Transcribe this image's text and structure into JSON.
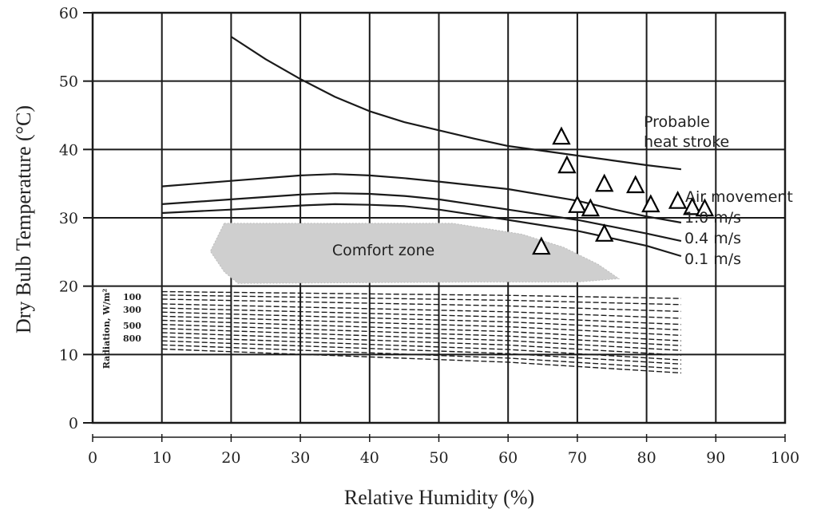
{
  "chart_data": {
    "type": "scatter",
    "xlabel": "Relative Humidity (%)",
    "ylabel": "Dry Bulb Temperature (°C)",
    "xlim": [
      0,
      100
    ],
    "ylim": [
      0,
      60
    ],
    "x_ticks": [
      "0",
      "10",
      "20",
      "30",
      "40",
      "50",
      "60",
      "70",
      "80",
      "90",
      "100"
    ],
    "y_ticks": [
      "0",
      "10",
      "20",
      "30",
      "40",
      "50",
      "60"
    ],
    "grid": true,
    "marker": "triangle-outline",
    "series": [
      {
        "points": [
          {
            "x": 67.7,
            "y": 41.8
          },
          {
            "x": 68.5,
            "y": 37.6
          },
          {
            "x": 70.0,
            "y": 31.8
          },
          {
            "x": 71.9,
            "y": 31.3
          },
          {
            "x": 73.9,
            "y": 34.9
          },
          {
            "x": 78.4,
            "y": 34.7
          },
          {
            "x": 80.6,
            "y": 31.9
          },
          {
            "x": 84.5,
            "y": 32.4
          },
          {
            "x": 86.6,
            "y": 31.5
          },
          {
            "x": 88.4,
            "y": 31.3
          },
          {
            "x": 64.8,
            "y": 25.7
          },
          {
            "x": 73.9,
            "y": 27.6
          }
        ]
      }
    ],
    "curves": [
      {
        "x": [
          20,
          25,
          30,
          35,
          40,
          45,
          50,
          55,
          60,
          65,
          70,
          75,
          80,
          85
        ],
        "y": [
          56.5,
          53.2,
          50.3,
          47.7,
          45.6,
          44.0,
          42.8,
          41.6,
          40.5,
          39.8,
          39.1,
          38.4,
          37.7,
          37.1
        ]
      },
      {
        "x": [
          10,
          20,
          30,
          35,
          40,
          45,
          50,
          60,
          70,
          75,
          80,
          85
        ],
        "y": [
          34.6,
          35.4,
          36.2,
          36.4,
          36.2,
          35.8,
          35.3,
          34.2,
          32.5,
          31.3,
          30.2,
          29.3
        ]
      },
      {
        "x": [
          10,
          20,
          30,
          35,
          40,
          45,
          50,
          60,
          70,
          75,
          80,
          85
        ],
        "y": [
          32.0,
          32.7,
          33.4,
          33.6,
          33.5,
          33.2,
          32.7,
          31.2,
          29.7,
          28.7,
          27.7,
          26.6
        ]
      },
      {
        "x": [
          10,
          20,
          30,
          35,
          40,
          45,
          50,
          60,
          70,
          75,
          80,
          85
        ],
        "y": [
          30.7,
          31.2,
          31.8,
          32.0,
          31.9,
          31.7,
          31.2,
          29.7,
          28.1,
          27.0,
          25.9,
          24.4
        ]
      }
    ],
    "radiation_lines": {
      "x_start": 10,
      "x_end": 85,
      "y_start": [
        19.2,
        18.7,
        18.1,
        17.4,
        16.8,
        16.2,
        15.6,
        15.0,
        14.4,
        13.8,
        13.2,
        12.6,
        12.0,
        11.4,
        10.8
      ],
      "y_drop": [
        1.0,
        1.4,
        1.8,
        2.1,
        2.4,
        2.6,
        2.8,
        3.0,
        3.1,
        3.2,
        3.3,
        3.4,
        3.4,
        3.5,
        3.5
      ],
      "labels": [
        "100",
        "300",
        "500",
        "800"
      ],
      "unit_label": "Radiation, W/m²"
    },
    "comfort_zone": {
      "label": "Comfort zone",
      "polygon": [
        [
          19,
          29.2
        ],
        [
          52,
          29.2
        ],
        [
          62,
          27.6
        ],
        [
          68,
          25.7
        ],
        [
          73,
          23.2
        ],
        [
          76,
          21.1
        ],
        [
          70,
          20.6
        ],
        [
          55,
          20.6
        ],
        [
          21,
          20.4
        ],
        [
          19,
          22.1
        ],
        [
          17,
          25.1
        ]
      ]
    },
    "annotations": {
      "heat_stroke": "Probable\nheat stroke",
      "air_movement": "Air movement",
      "labels": [
        "1.0 m/s",
        "0.4 m/s",
        "0.1 m/s"
      ]
    },
    "colors": {
      "line": "#1a1a1a",
      "grid": "#1a1a1a",
      "comfort": "#cfcfcf",
      "marker_fill": "#ffffff"
    }
  }
}
